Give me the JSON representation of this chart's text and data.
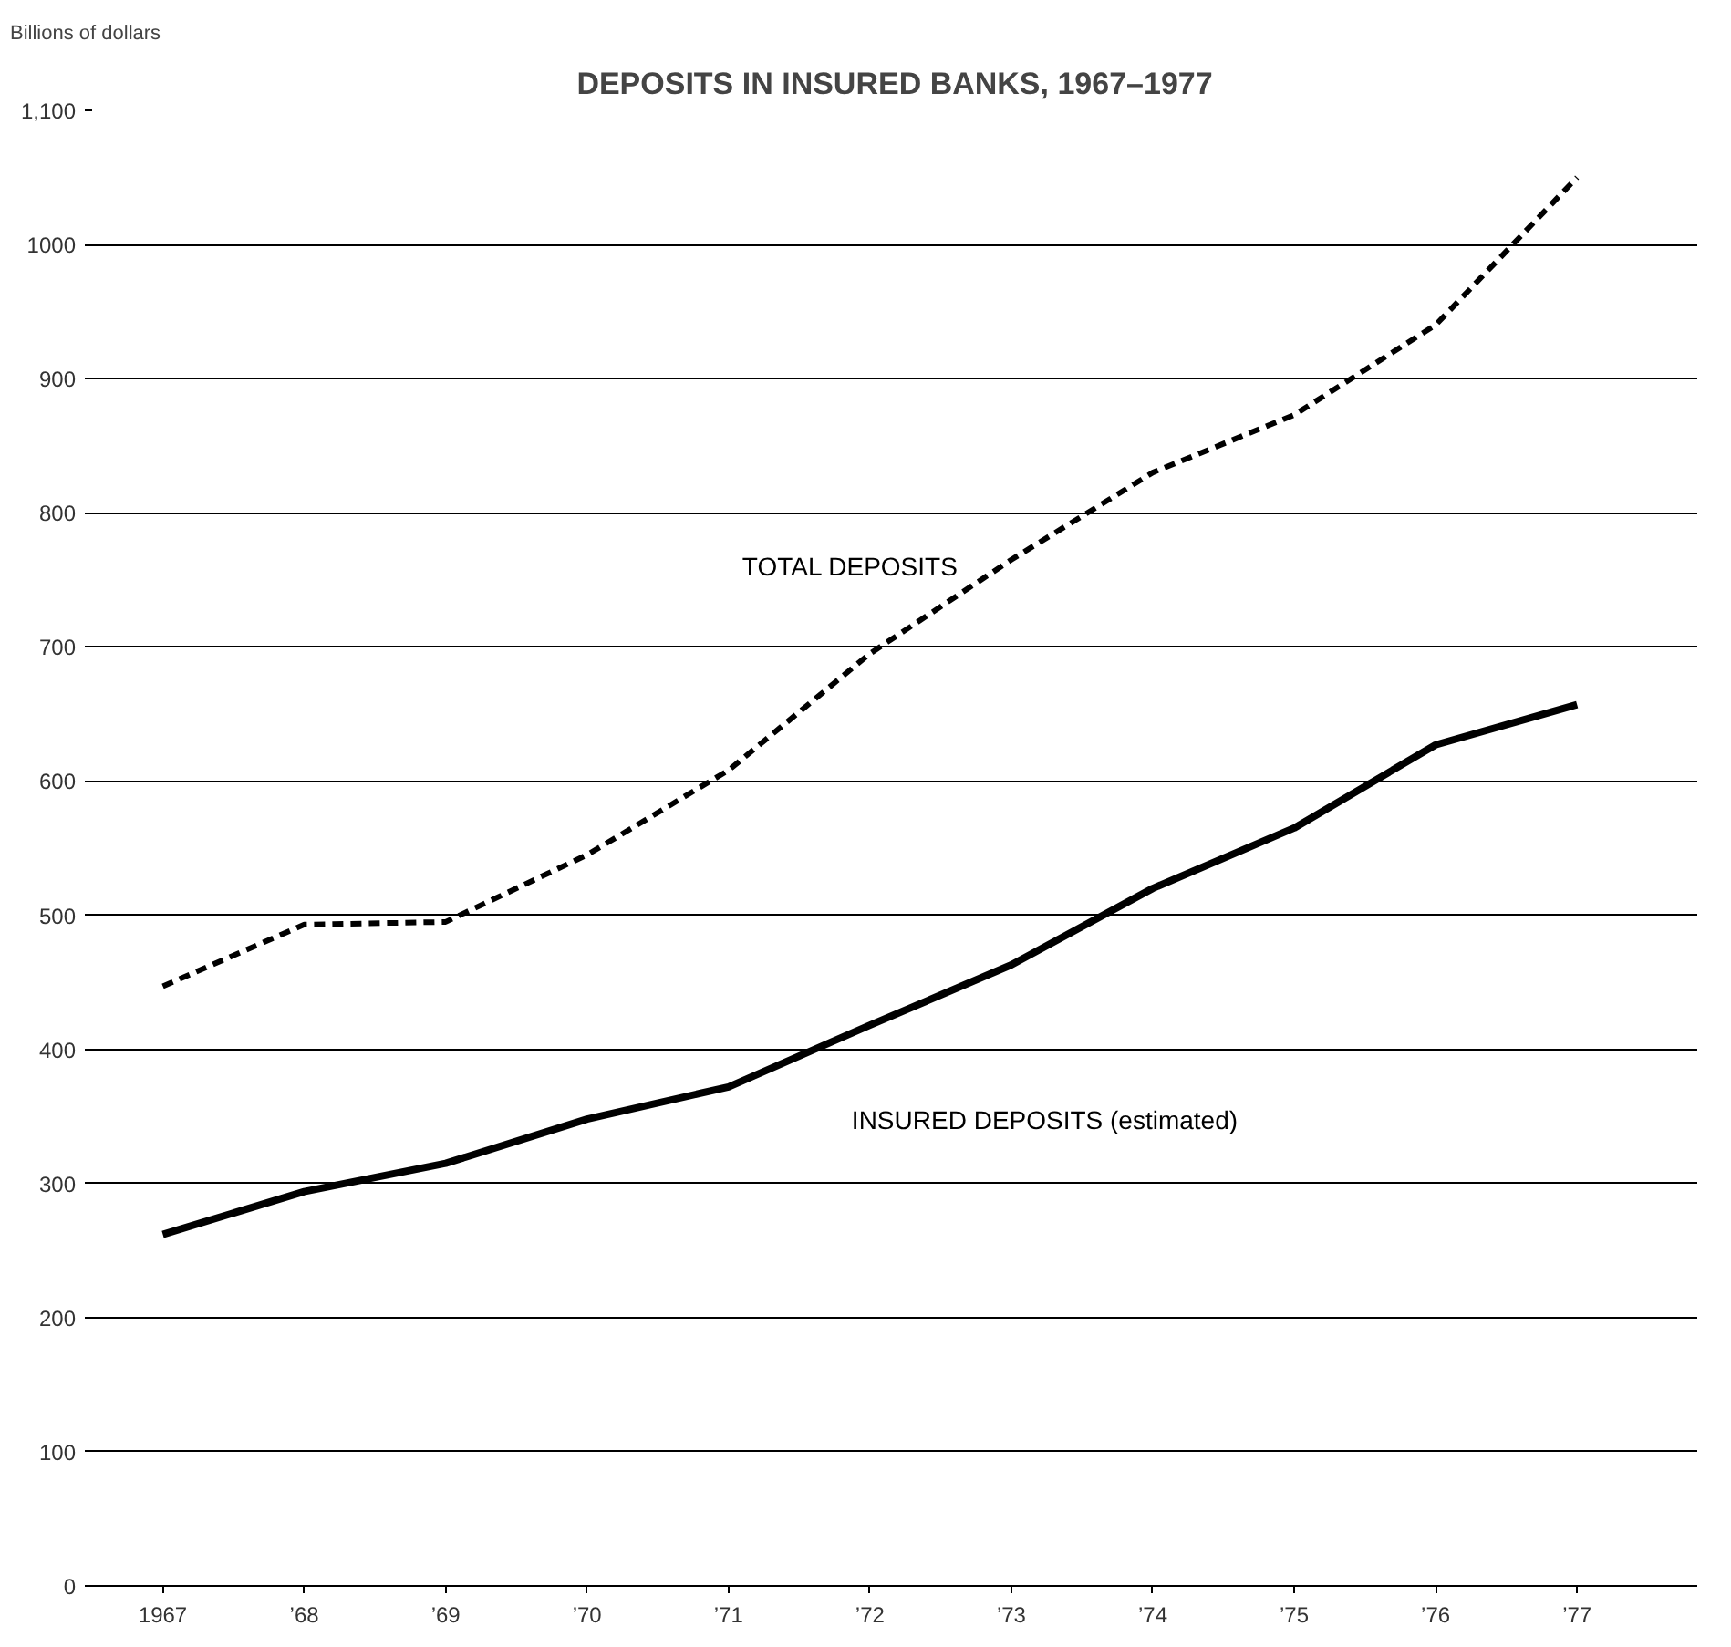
{
  "chart_data": {
    "type": "line",
    "title": "DEPOSITS IN INSURED BANKS, 1967–1977",
    "ylabel": "Billions of dollars",
    "x": [
      1967,
      1968,
      1969,
      1970,
      1971,
      1972,
      1973,
      1974,
      1975,
      1976,
      1977
    ],
    "series": [
      {
        "name": "TOTAL DEPOSITS",
        "color": "#000000",
        "line_style": "dashed",
        "values": [
          447,
          493,
          495,
          545,
          608,
          695,
          765,
          830,
          873,
          940,
          1050
        ]
      },
      {
        "name": "INSURED DEPOSITS (estimated)",
        "color": "#000000",
        "line_style": "solid",
        "values": [
          262,
          294,
          315,
          348,
          372,
          418,
          463,
          520,
          565,
          627,
          657
        ]
      }
    ],
    "xlim": [
      1966.5,
      1977.85
    ],
    "ylim": [
      0,
      1100
    ],
    "xticks": [
      {
        "value": 1967,
        "label": "1967"
      },
      {
        "value": 1968,
        "label": "’68"
      },
      {
        "value": 1969,
        "label": "’69"
      },
      {
        "value": 1970,
        "label": "’70"
      },
      {
        "value": 1971,
        "label": "’71"
      },
      {
        "value": 1972,
        "label": "’72"
      },
      {
        "value": 1973,
        "label": "’73"
      },
      {
        "value": 1974,
        "label": "’74"
      },
      {
        "value": 1975,
        "label": "’75"
      },
      {
        "value": 1976,
        "label": "’76"
      },
      {
        "value": 1977,
        "label": "’77"
      }
    ],
    "yticks": [
      0,
      100,
      200,
      300,
      400,
      500,
      600,
      700,
      800,
      900,
      1000,
      {
        "value": 1100,
        "label": "1,100"
      }
    ],
    "grid": "y",
    "legend": false,
    "marker": "none"
  }
}
